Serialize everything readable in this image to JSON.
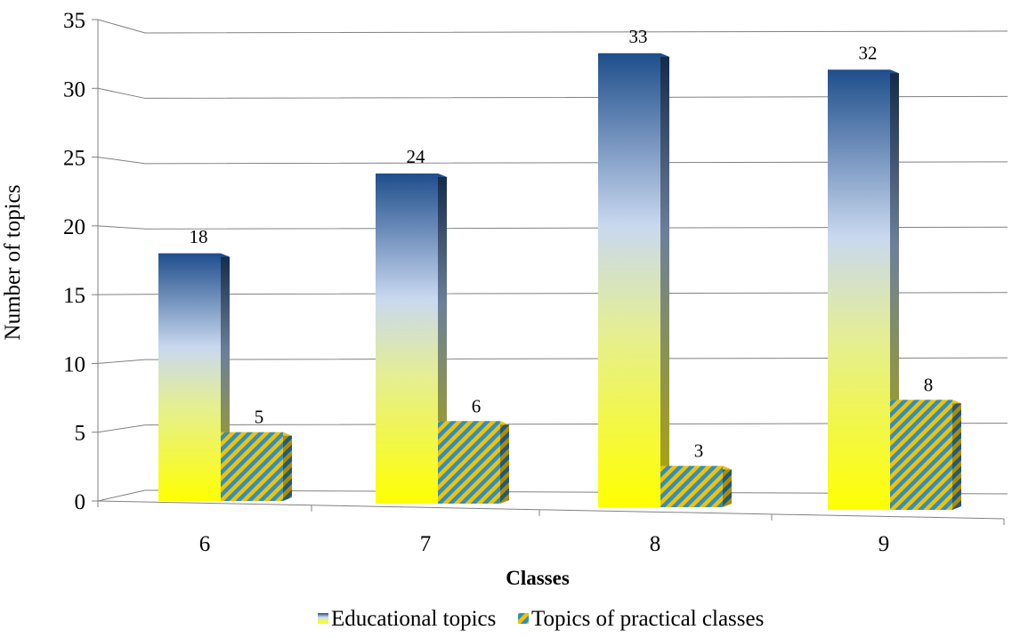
{
  "chart_data": {
    "type": "bar",
    "categories": [
      "6",
      "7",
      "8",
      "9"
    ],
    "series": [
      {
        "name": "Educational topics",
        "values": [
          18,
          24,
          33,
          32
        ]
      },
      {
        "name": "Topics of practical classes",
        "values": [
          5,
          6,
          3,
          8
        ]
      }
    ],
    "data_labels": {
      "educational": [
        "18",
        "24",
        "33",
        "32"
      ],
      "practical": [
        "5",
        "6",
        "3",
        "8"
      ]
    },
    "xlabel": "Classes",
    "ylabel": "Number of topics",
    "ylim": [
      0,
      35
    ],
    "yticks": [
      "0",
      "5",
      "10",
      "15",
      "20",
      "25",
      "30",
      "35"
    ],
    "grid": true,
    "legend_position": "bottom",
    "colors": {
      "educational_top": "#1f4e8c",
      "educational_mid": "#c9d8ef",
      "educational_bottom": "#ffff00",
      "practical_a": "#f2c200",
      "practical_b": "#2f8fc4",
      "grid": "#808080"
    }
  }
}
